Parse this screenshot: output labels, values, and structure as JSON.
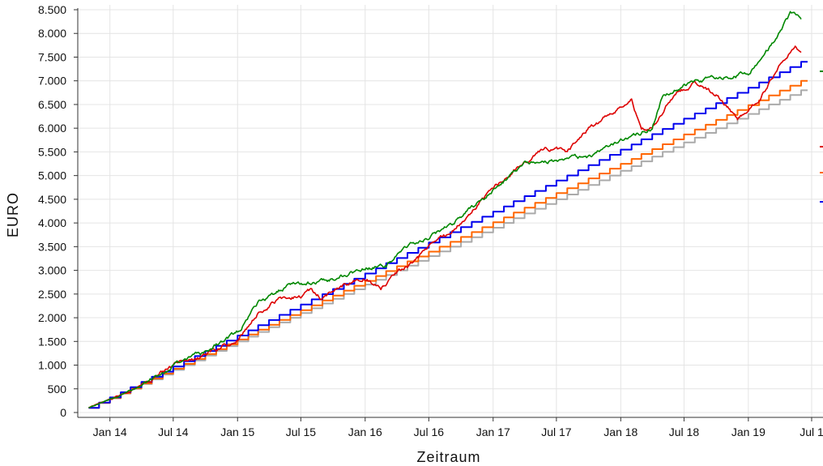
{
  "chart_data": {
    "type": "line",
    "title": "",
    "xlabel": "Zeitraum",
    "ylabel": "EURO",
    "ylim": [
      0,
      8500
    ],
    "xlim": [
      "2013-10-01",
      "2019-07-08"
    ],
    "y_ticks": [
      0,
      500,
      1000,
      1500,
      2000,
      2500,
      3000,
      3500,
      4000,
      4500,
      5000,
      5500,
      6000,
      6500,
      7000,
      7500,
      8000,
      8500
    ],
    "y_tick_labels": [
      "0",
      "500",
      "1.000",
      "1.500",
      "2.000",
      "2.500",
      "3.000",
      "3.500",
      "4.000",
      "4.500",
      "5.000",
      "5.500",
      "6.000",
      "6.500",
      "7.000",
      "7.500",
      "8.000",
      "8.500"
    ],
    "x_ticks": [
      "2014-01-01",
      "2014-07-01",
      "2015-01-01",
      "2015-07-01",
      "2016-01-01",
      "2016-07-01",
      "2017-01-01",
      "2017-07-01",
      "2018-01-01",
      "2018-07-01",
      "2019-01-01",
      "2019-07-01"
    ],
    "x_tick_labels": [
      "Jan 14",
      "Jul 14",
      "Jan 15",
      "Jul 15",
      "Jan 16",
      "Jul 16",
      "Jan 17",
      "Jul 17",
      "Jan 18",
      "Jul 18",
      "Jan 19",
      "Jul 1"
    ],
    "grid": true,
    "legend": "right (cut off)",
    "series": [
      {
        "color": "#aaaaaa",
        "style": "step",
        "points": [
          [
            "2013-11-01",
            100
          ],
          [
            "2019-06-01",
            6800
          ]
        ]
      },
      {
        "color": "#ff6600",
        "style": "step",
        "points": [
          [
            "2013-11-01",
            100
          ],
          [
            "2019-06-01",
            7000
          ]
        ]
      },
      {
        "color": "#0000ee",
        "style": "step",
        "points": [
          [
            "2013-11-01",
            100
          ],
          [
            "2019-06-01",
            7400
          ]
        ]
      },
      {
        "color": "#dd0000",
        "style": "line",
        "points": [
          [
            "2013-11-01",
            100
          ],
          [
            "2014-01-01",
            280
          ],
          [
            "2014-04-01",
            560
          ],
          [
            "2014-07-01",
            1000
          ],
          [
            "2014-10-01",
            1200
          ],
          [
            "2015-01-01",
            1550
          ],
          [
            "2015-03-01",
            2100
          ],
          [
            "2015-05-01",
            2400
          ],
          [
            "2015-07-01",
            2450
          ],
          [
            "2015-08-01",
            2600
          ],
          [
            "2015-09-01",
            2400
          ],
          [
            "2015-11-01",
            2700
          ],
          [
            "2016-01-01",
            2850
          ],
          [
            "2016-02-15",
            2600
          ],
          [
            "2016-04-01",
            2950
          ],
          [
            "2016-06-01",
            3250
          ],
          [
            "2016-07-01",
            3550
          ],
          [
            "2016-09-01",
            3800
          ],
          [
            "2016-12-01",
            4500
          ],
          [
            "2017-03-01",
            5100
          ],
          [
            "2017-06-01",
            5600
          ],
          [
            "2017-08-01",
            5500
          ],
          [
            "2017-10-01",
            6000
          ],
          [
            "2017-12-01",
            6300
          ],
          [
            "2018-02-01",
            6650
          ],
          [
            "2018-03-01",
            5950
          ],
          [
            "2018-04-01",
            6000
          ],
          [
            "2018-06-01",
            6700
          ],
          [
            "2018-08-01",
            6950
          ],
          [
            "2018-10-01",
            6700
          ],
          [
            "2018-12-01",
            6200
          ],
          [
            "2019-02-01",
            6600
          ],
          [
            "2019-04-01",
            7350
          ],
          [
            "2019-05-15",
            7750
          ],
          [
            "2019-06-01",
            7600
          ]
        ]
      },
      {
        "color": "#008800",
        "style": "line",
        "points": [
          [
            "2013-11-01",
            100
          ],
          [
            "2014-01-01",
            280
          ],
          [
            "2014-04-01",
            560
          ],
          [
            "2014-07-01",
            1000
          ],
          [
            "2014-10-01",
            1300
          ],
          [
            "2015-01-01",
            1700
          ],
          [
            "2015-03-01",
            2300
          ],
          [
            "2015-06-01",
            2700
          ],
          [
            "2015-09-01",
            2750
          ],
          [
            "2016-01-01",
            3050
          ],
          [
            "2016-03-01",
            3100
          ],
          [
            "2016-05-01",
            3500
          ],
          [
            "2016-07-01",
            3700
          ],
          [
            "2016-10-01",
            4100
          ],
          [
            "2017-01-01",
            4700
          ],
          [
            "2017-04-01",
            5250
          ],
          [
            "2017-07-01",
            5300
          ],
          [
            "2017-10-01",
            5400
          ],
          [
            "2018-01-01",
            5750
          ],
          [
            "2018-04-01",
            6000
          ],
          [
            "2018-05-01",
            6700
          ],
          [
            "2018-08-01",
            7000
          ],
          [
            "2018-11-01",
            7100
          ],
          [
            "2019-01-01",
            7150
          ],
          [
            "2019-03-01",
            7700
          ],
          [
            "2019-05-01",
            8400
          ],
          [
            "2019-06-01",
            8300
          ]
        ]
      }
    ]
  }
}
